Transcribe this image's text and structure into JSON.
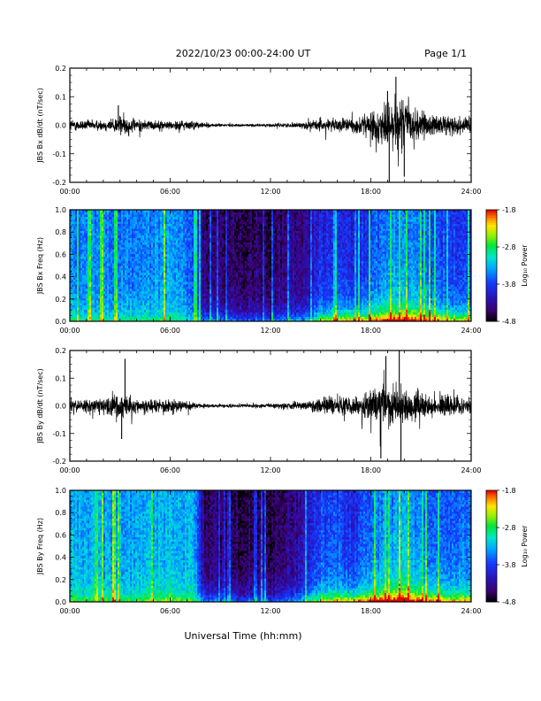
{
  "header": {
    "date_range": "2022/10/23  00:00-24:00 UT",
    "page": "Page 1/1"
  },
  "footer": {
    "xlabel": "Universal Time (hh:mm)"
  },
  "chart_data": [
    {
      "type": "line",
      "ylabel": "JBS Bx dB/dt (nT/sec)",
      "xlim": [
        0,
        24
      ],
      "ylim": [
        -0.2,
        0.2
      ],
      "x_ticklabels": [
        "00:00",
        "06:00",
        "12:00",
        "18:00",
        "24:00"
      ],
      "y_ticks": [
        -0.2,
        -0.1,
        0.0,
        0.1,
        0.2
      ],
      "y_ticklabels": [
        "-0.2",
        "-0.1",
        "0.0",
        "0.1",
        "0.2"
      ],
      "grid": false,
      "series": [
        {
          "hours": [
            0,
            1,
            2,
            3,
            4,
            5,
            6,
            7,
            8,
            9,
            10,
            11,
            12,
            13,
            14,
            15,
            16,
            17,
            18,
            19,
            20,
            21,
            22,
            23,
            24
          ],
          "amplitude": [
            0.035,
            0.03,
            0.03,
            0.055,
            0.035,
            0.028,
            0.025,
            0.03,
            0.015,
            0.01,
            0.008,
            0.008,
            0.01,
            0.012,
            0.02,
            0.035,
            0.04,
            0.04,
            0.08,
            0.13,
            0.16,
            0.08,
            0.06,
            0.05,
            0.05
          ],
          "peaks": [
            {
              "x": 2.9,
              "y": 0.07
            },
            {
              "x": 19.0,
              "y": 0.12
            },
            {
              "x": 19.5,
              "y": 0.17
            },
            {
              "x": 19.1,
              "y": -0.2
            },
            {
              "x": 20.0,
              "y": -0.18
            }
          ]
        }
      ]
    },
    {
      "type": "heatmap",
      "ylabel": "JBS Bx Freq (Hz)",
      "colorbar_label": "Log₁₀ Power",
      "xlim": [
        0,
        24
      ],
      "ylim": [
        0,
        1.0
      ],
      "x_ticklabels": [
        "00:00",
        "06:00",
        "12:00",
        "18:00",
        "24:00"
      ],
      "y_ticks": [
        0.0,
        0.2,
        0.4,
        0.6,
        0.8,
        1.0
      ],
      "y_ticklabels": [
        "0.0",
        "0.2",
        "0.4",
        "0.6",
        "0.8",
        "1.0"
      ],
      "colorbar_range": [
        -4.8,
        -1.8
      ],
      "colorbar_ticks": [
        -1.8,
        -2.8,
        -3.8,
        -4.8
      ],
      "colorbar_ticklabels": [
        "-1.8",
        "-2.8",
        "-3.8",
        "-4.8"
      ],
      "hours": [
        0,
        2,
        4,
        6,
        7.5,
        8,
        10,
        12,
        14,
        15,
        16,
        17,
        18,
        19,
        20,
        21,
        22,
        24
      ],
      "baseline_log_power": [
        -3.6,
        -3.5,
        -3.6,
        -3.4,
        -3.7,
        -4.5,
        -4.6,
        -4.6,
        -4.4,
        -4.0,
        -4.0,
        -4.1,
        -3.8,
        -3.6,
        -3.5,
        -3.7,
        -3.8,
        -3.9
      ],
      "low_freq_peak_log_power": [
        -3.0,
        -3.0,
        -3.0,
        -2.9,
        -3.2,
        -3.6,
        -3.8,
        -3.8,
        -3.5,
        -2.8,
        -2.6,
        -2.6,
        -2.3,
        -2.0,
        -1.9,
        -2.2,
        -2.4,
        -2.6
      ]
    },
    {
      "type": "line",
      "ylabel": "JBS By dB/dt (nT/sec)",
      "xlim": [
        0,
        24
      ],
      "ylim": [
        -0.2,
        0.2
      ],
      "x_ticklabels": [
        "00:00",
        "06:00",
        "12:00",
        "18:00",
        "24:00"
      ],
      "y_ticks": [
        -0.2,
        -0.1,
        0.0,
        0.1,
        0.2
      ],
      "y_ticklabels": [
        "-0.2",
        "-0.1",
        "0.0",
        "0.1",
        "0.2"
      ],
      "grid": false,
      "series": [
        {
          "hours": [
            0,
            1,
            2,
            3,
            4,
            5,
            6,
            7,
            8,
            9,
            10,
            11,
            12,
            13,
            14,
            15,
            16,
            17,
            18,
            19,
            20,
            21,
            22,
            23,
            24
          ],
          "amplitude": [
            0.04,
            0.04,
            0.045,
            0.08,
            0.045,
            0.04,
            0.045,
            0.025,
            0.012,
            0.01,
            0.01,
            0.012,
            0.015,
            0.02,
            0.03,
            0.05,
            0.055,
            0.05,
            0.09,
            0.14,
            0.12,
            0.07,
            0.06,
            0.06,
            0.055
          ],
          "peaks": [
            {
              "x": 3.3,
              "y": 0.17
            },
            {
              "x": 3.1,
              "y": -0.12
            },
            {
              "x": 18.9,
              "y": 0.18
            },
            {
              "x": 19.7,
              "y": 0.2
            },
            {
              "x": 19.8,
              "y": -0.2
            },
            {
              "x": 18.6,
              "y": -0.19
            }
          ]
        }
      ]
    },
    {
      "type": "heatmap",
      "ylabel": "JBS By Freq (Hz)",
      "colorbar_label": "Log₁₀ Power",
      "xlim": [
        0,
        24
      ],
      "ylim": [
        0,
        1.0
      ],
      "x_ticklabels": [
        "00:00",
        "06:00",
        "12:00",
        "18:00",
        "24:00"
      ],
      "y_ticks": [
        0.0,
        0.2,
        0.4,
        0.6,
        0.8,
        1.0
      ],
      "y_ticklabels": [
        "0.0",
        "0.2",
        "0.4",
        "0.6",
        "0.8",
        "1.0"
      ],
      "colorbar_range": [
        -4.8,
        -1.8
      ],
      "colorbar_ticks": [
        -1.8,
        -2.8,
        -3.8,
        -4.8
      ],
      "colorbar_ticklabels": [
        "-1.8",
        "-2.8",
        "-3.8",
        "-4.8"
      ],
      "hours": [
        0,
        2,
        4,
        6,
        7.5,
        8,
        10,
        12,
        14,
        15,
        16,
        17,
        18,
        19,
        20,
        21,
        22,
        24
      ],
      "baseline_log_power": [
        -3.4,
        -3.4,
        -3.4,
        -3.3,
        -3.4,
        -4.5,
        -4.6,
        -4.6,
        -4.3,
        -3.8,
        -3.8,
        -4.0,
        -3.7,
        -3.5,
        -3.4,
        -3.6,
        -3.7,
        -3.6
      ],
      "low_freq_peak_log_power": [
        -2.8,
        -2.8,
        -2.8,
        -2.6,
        -2.9,
        -3.6,
        -3.8,
        -3.8,
        -3.4,
        -2.6,
        -2.5,
        -2.5,
        -2.2,
        -1.9,
        -1.8,
        -2.1,
        -2.3,
        -2.4
      ]
    }
  ]
}
